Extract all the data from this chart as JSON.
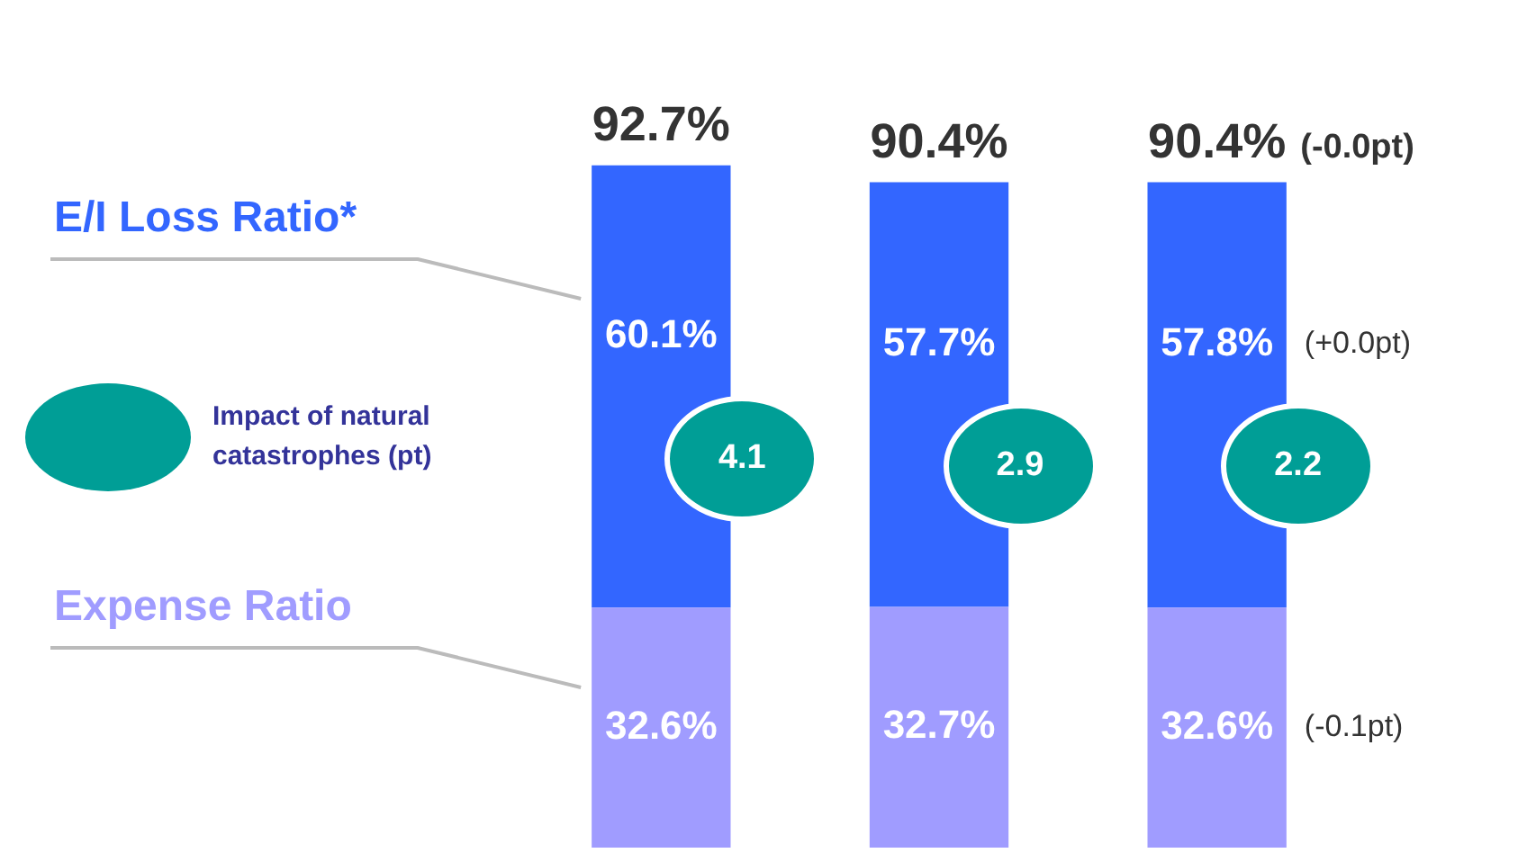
{
  "chart_data": {
    "type": "bar",
    "stacked": true,
    "categories": [
      null,
      null,
      null
    ],
    "series": [
      {
        "name": "Expense Ratio",
        "color": "#a09cff",
        "values": [
          32.6,
          32.7,
          32.6
        ],
        "value_labels": [
          "32.6%",
          "32.7%",
          "32.6%"
        ]
      },
      {
        "name": "E/I Loss Ratio*",
        "color": "#3366ff",
        "values": [
          60.1,
          57.7,
          57.8
        ],
        "value_labels": [
          "60.1%",
          "57.7%",
          "57.8%"
        ]
      }
    ],
    "totals": [
      "92.7%",
      "90.4%",
      "90.4%"
    ],
    "annotations": [
      "4.1",
      "2.9",
      "2.2",
      "Impact of natural catastrophes (pt)",
      "(-0.1pt)",
      "(+0.0pt)",
      "(-0.0pt)"
    ],
    "legend": "left",
    "tick_labels": false
  }
}
